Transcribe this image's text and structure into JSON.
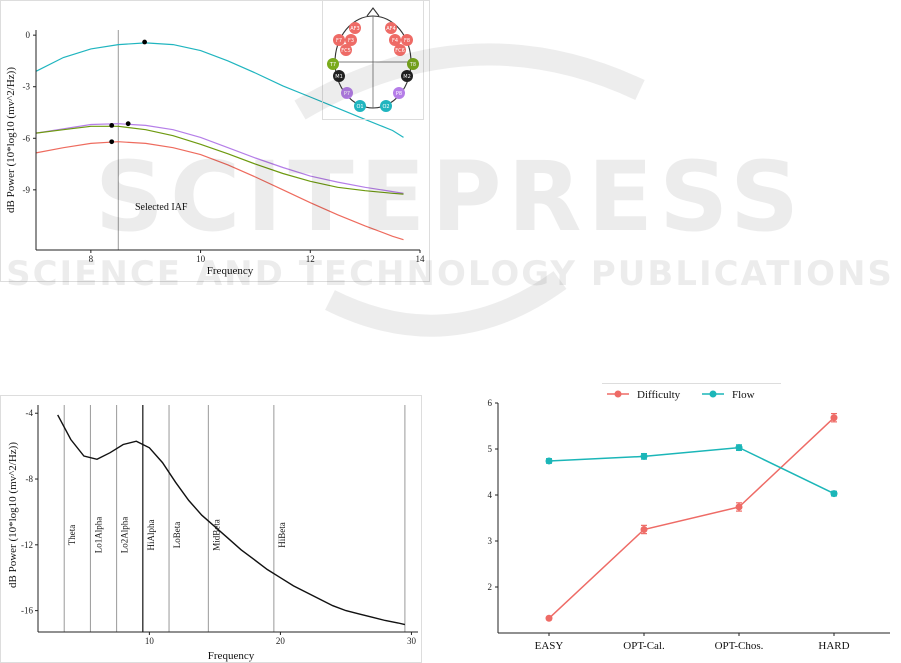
{
  "watermark": {
    "big_text": "SCITEPRESS",
    "small_text": "SCIENCE AND TECHNOLOGY PUBLICATIONS"
  },
  "chart_data": [
    {
      "id": "iaf",
      "type": "line",
      "xlabel": "Frequency",
      "ylabel": "dB Power (10*log10 (mv^2/Hz))",
      "xlim": [
        7,
        14
      ],
      "ylim": [
        -12.5,
        0.3
      ],
      "xticks": [
        8,
        10,
        12,
        14
      ],
      "yticks": [
        0,
        -3,
        -6,
        -9
      ],
      "ytick_labels": [
        "0",
        "-3",
        "-6",
        "-9"
      ],
      "vline": {
        "x": 8.5,
        "label": "Selected IAF"
      },
      "series": [
        {
          "color": "#20b5bf",
          "x": [
            7.0,
            7.5,
            8.0,
            8.5,
            9.0,
            9.5,
            10.0,
            10.5,
            11.0,
            11.5,
            12.0,
            12.5,
            13.0,
            13.5,
            13.7
          ],
          "y": [
            -2.1,
            -1.3,
            -0.8,
            -0.55,
            -0.45,
            -0.55,
            -0.9,
            -1.5,
            -2.2,
            -2.95,
            -3.6,
            -4.25,
            -4.9,
            -5.55,
            -5.95
          ],
          "peak": [
            8.98,
            -0.4
          ]
        },
        {
          "color": "#b57ee8",
          "x": [
            7.0,
            7.5,
            8.0,
            8.5,
            9.0,
            9.5,
            10.0,
            10.5,
            11.0,
            11.5,
            12.0,
            12.5,
            13.0,
            13.5,
            13.7
          ],
          "y": [
            -5.7,
            -5.45,
            -5.2,
            -5.15,
            -5.25,
            -5.5,
            -5.95,
            -6.55,
            -7.15,
            -7.7,
            -8.2,
            -8.55,
            -8.85,
            -9.1,
            -9.2
          ],
          "peak": [
            8.68,
            -5.15
          ]
        },
        {
          "color": "#6e9a10",
          "x": [
            7.0,
            7.5,
            8.0,
            8.5,
            9.0,
            9.5,
            10.0,
            10.5,
            11.0,
            11.5,
            12.0,
            12.5,
            13.0,
            13.5,
            13.7
          ],
          "y": [
            -5.7,
            -5.5,
            -5.3,
            -5.3,
            -5.5,
            -5.85,
            -6.35,
            -6.9,
            -7.5,
            -8.05,
            -8.5,
            -8.85,
            -9.05,
            -9.2,
            -9.25
          ],
          "peak": [
            8.38,
            -5.25
          ]
        },
        {
          "color": "#ee6b5e",
          "x": [
            7.0,
            7.5,
            8.0,
            8.5,
            9.0,
            9.5,
            10.0,
            10.5,
            11.0,
            11.5,
            12.0,
            12.5,
            13.0,
            13.5,
            13.7
          ],
          "y": [
            -6.85,
            -6.55,
            -6.3,
            -6.2,
            -6.3,
            -6.55,
            -6.95,
            -7.55,
            -8.25,
            -9.0,
            -9.75,
            -10.45,
            -11.1,
            -11.7,
            -11.9
          ],
          "peak": [
            8.38,
            -6.2
          ]
        }
      ]
    },
    {
      "id": "spectrum",
      "type": "line",
      "xlabel": "Frequency",
      "ylabel": "dB Power (10*log10 (mv^2/Hz))",
      "xlim": [
        1.5,
        30.5
      ],
      "ylim": [
        -17.3,
        -3.5
      ],
      "xticks": [
        10,
        20,
        30
      ],
      "yticks": [
        -4,
        -8,
        -12,
        -16
      ],
      "series": [
        {
          "color": "#111111",
          "x": [
            3,
            4,
            5,
            6,
            7,
            8,
            9,
            10,
            11,
            12,
            13,
            14,
            15,
            16,
            17,
            18,
            19,
            20,
            21,
            22,
            23,
            24,
            25,
            26,
            27,
            28,
            29,
            29.5
          ],
          "y": [
            -4.1,
            -5.6,
            -6.6,
            -6.8,
            -6.4,
            -5.9,
            -5.7,
            -6.1,
            -7.0,
            -8.2,
            -9.3,
            -10.2,
            -10.9,
            -11.6,
            -12.3,
            -12.9,
            -13.5,
            -14.0,
            -14.5,
            -14.9,
            -15.3,
            -15.7,
            -16.0,
            -16.2,
            -16.4,
            -16.6,
            -16.75,
            -16.85
          ]
        }
      ],
      "bands": [
        {
          "x": 3.5,
          "label": "Theta"
        },
        {
          "x": 5.5,
          "label": "Lo1Alpha"
        },
        {
          "x": 7.5,
          "label": "Lo2Alpha"
        },
        {
          "x": 9.5,
          "label": "HiAlpha"
        },
        {
          "x": 11.5,
          "label": "LoBeta"
        },
        {
          "x": 14.5,
          "label": "MidBeta"
        },
        {
          "x": 19.5,
          "label": "HiBeta"
        },
        {
          "x": 29.5,
          "label": ""
        }
      ]
    },
    {
      "id": "difficulty-flow",
      "type": "line",
      "categories": [
        "EASY",
        "OPT-Cal.",
        "OPT-Chos.",
        "HARD"
      ],
      "ylim": [
        1.0,
        6.0
      ],
      "yticks": [
        2,
        3,
        4,
        5,
        6
      ],
      "legend_position": "top",
      "series": [
        {
          "name": "Difficulty",
          "color": "#ee6b66",
          "values": [
            1.32,
            3.25,
            3.74,
            5.68
          ],
          "err": [
            0.03,
            0.09,
            0.09,
            0.09
          ]
        },
        {
          "name": "Flow",
          "color": "#1bb6b8",
          "values": [
            4.74,
            4.84,
            5.03,
            4.03
          ],
          "err": [
            0.05,
            0.06,
            0.06,
            0.05
          ]
        }
      ]
    }
  ],
  "topomap": {
    "electrodes": [
      {
        "label": "AF3",
        "color": "#ee6b66"
      },
      {
        "label": "AF4",
        "color": "#ee6b66"
      },
      {
        "label": "F7",
        "color": "#ee6b66"
      },
      {
        "label": "F3",
        "color": "#ee6b66"
      },
      {
        "label": "F4",
        "color": "#ee6b66"
      },
      {
        "label": "F8",
        "color": "#ee6b66"
      },
      {
        "label": "FC5",
        "color": "#ee6b66"
      },
      {
        "label": "FC6",
        "color": "#ee6b66"
      },
      {
        "label": "T7",
        "color": "#7aab1c"
      },
      {
        "label": "T8",
        "color": "#7aab1c"
      },
      {
        "label": "M1",
        "color": "#222222"
      },
      {
        "label": "M2",
        "color": "#222222"
      },
      {
        "label": "P7",
        "color": "#b57ee8"
      },
      {
        "label": "P8",
        "color": "#b57ee8"
      },
      {
        "label": "O1",
        "color": "#20b5bf"
      },
      {
        "label": "O2",
        "color": "#20b5bf"
      }
    ]
  }
}
